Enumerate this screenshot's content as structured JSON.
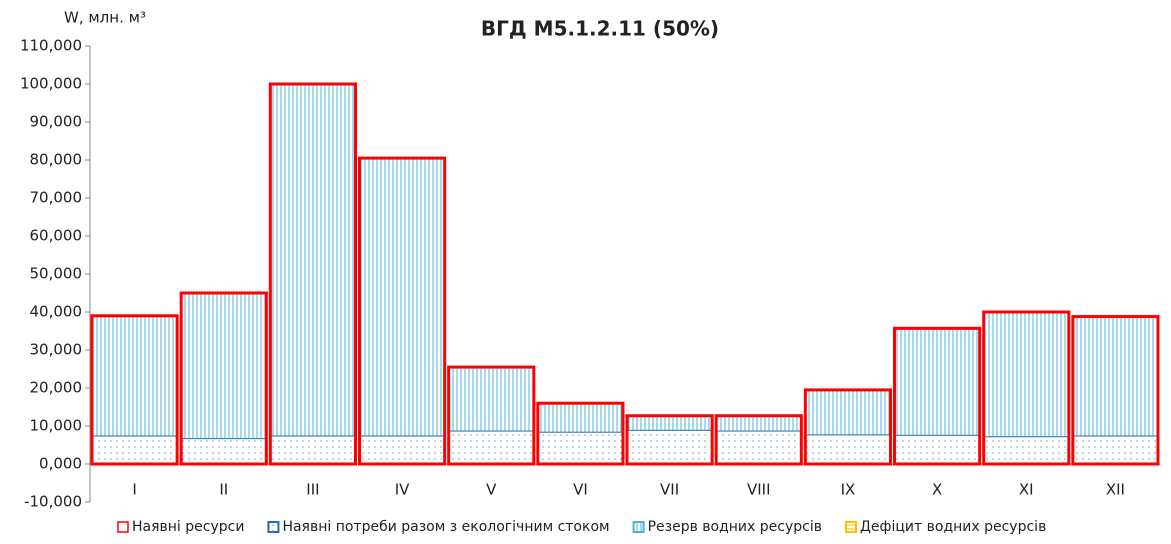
{
  "chart_data": {
    "type": "bar",
    "title": "ВГД М5.1.2.11 (50%)",
    "y_label": "W, млн. м³",
    "categories": [
      "I",
      "II",
      "III",
      "IV",
      "V",
      "VI",
      "VII",
      "VIII",
      "IX",
      "X",
      "XI",
      "XII"
    ],
    "series": [
      {
        "name": "Наявні ресурси",
        "color": "#ff0000",
        "style": "outline",
        "values": [
          39,
          45,
          100,
          80.5,
          25.5,
          16,
          12.7,
          12.7,
          19.5,
          35.7,
          40,
          38.8
        ]
      },
      {
        "name": "Наявні потреби разом з екологічним стоком",
        "color": "#1f6fb5",
        "style": "stack",
        "values": [
          7.5,
          6.8,
          7.5,
          7.5,
          8.8,
          8.5,
          9,
          8.8,
          7.8,
          7.7,
          7.3,
          7.5
        ]
      },
      {
        "name": "Резерв водних ресурсів",
        "color": "#4fb3d9",
        "style": "stack",
        "values": [
          31.5,
          38.2,
          92.5,
          73,
          16.7,
          7.5,
          3.7,
          3.9,
          11.7,
          28,
          32.7,
          31.3
        ]
      },
      {
        "name": "Дефіцит водних ресурсів",
        "color": "#ffc000",
        "style": "stack",
        "values": [
          0,
          0,
          0,
          0,
          0,
          0,
          0,
          0,
          0,
          0,
          0,
          0
        ]
      }
    ],
    "ylim": [
      -10,
      110
    ],
    "yticks": [
      {
        "value": -10,
        "label": "-10,000"
      },
      {
        "value": 0,
        "label": "0,000"
      },
      {
        "value": 10,
        "label": "10,000"
      },
      {
        "value": 20,
        "label": "20,000"
      },
      {
        "value": 30,
        "label": "30,000"
      },
      {
        "value": 40,
        "label": "40,000"
      },
      {
        "value": 50,
        "label": "50,000"
      },
      {
        "value": 60,
        "label": "60,000"
      },
      {
        "value": 70,
        "label": "70,000"
      },
      {
        "value": 80,
        "label": "80,000"
      },
      {
        "value": 90,
        "label": "90,000"
      },
      {
        "value": 100,
        "label": "100,000"
      },
      {
        "value": 110,
        "label": "110,000"
      }
    ],
    "legend": "bottom"
  }
}
